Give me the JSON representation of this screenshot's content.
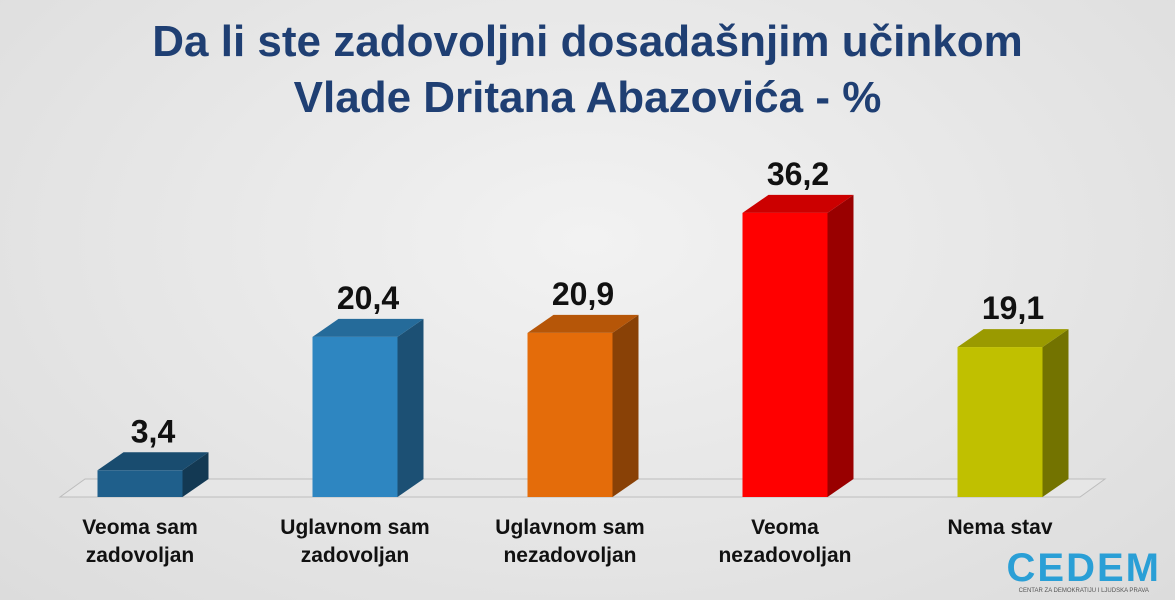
{
  "chart_data": {
    "type": "bar3d",
    "title": "Da li ste zadovoljni dosadašnjim učinkom\nVlade Dritana Abazovića - %",
    "categories": [
      "Veoma sam\nzadovoljan",
      "Uglavnom sam\nzadovoljan",
      "Uglavnom sam\nnezadovoljan",
      "Veoma\nnezadovoljan",
      "Nema stav"
    ],
    "values": [
      3.4,
      20.4,
      20.9,
      36.2,
      19.1
    ],
    "value_labels": [
      "3,4",
      "20,4",
      "20,9",
      "36,2",
      "19,1"
    ],
    "colors": [
      "#1f5f8b",
      "#2e86c1",
      "#e46c0a",
      "#ff0000",
      "#c0c000"
    ]
  },
  "logo": {
    "name": "CEDEM",
    "subtitle": "CENTAR ZA DEMOKRATIJU I LJUDSKA PRAVA"
  }
}
